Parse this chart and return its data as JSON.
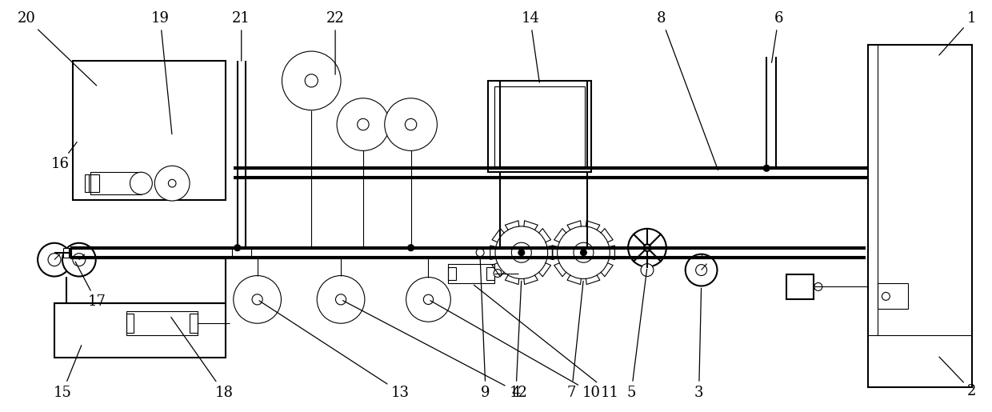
{
  "fig_width": 12.4,
  "fig_height": 5.15,
  "dpi": 100,
  "bg_color": "#ffffff",
  "line_color": "#000000"
}
